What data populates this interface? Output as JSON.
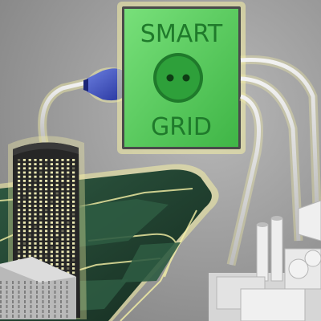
{
  "panel": {
    "line1": "SMART",
    "line2": "GRID"
  },
  "colors": {
    "panel_fill": "#5fd063",
    "panel_text": "#1f7a2b",
    "glow": "#f4f09a",
    "plug": "#3346b8",
    "board": "#1f3a2c",
    "building": "#2b2b2b",
    "window": "#f3f0b8",
    "factory": "#e6e6e6"
  },
  "icons": [
    "power-socket-icon",
    "electric-plug-icon",
    "skyscraper-icon",
    "power-plant-icon"
  ]
}
